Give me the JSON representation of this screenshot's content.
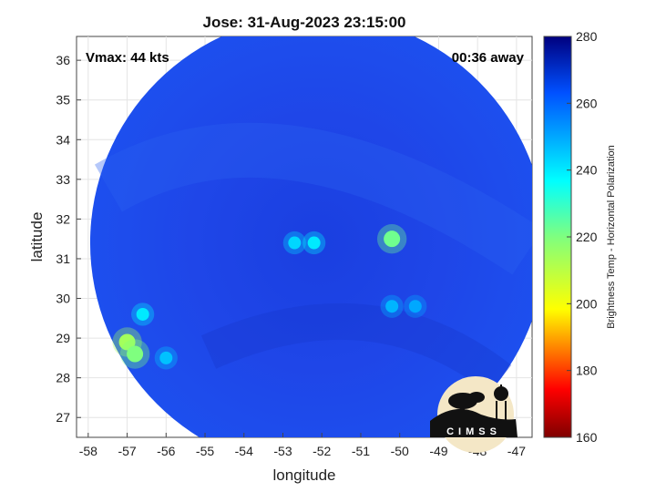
{
  "title": "Jose: 31-Aug-2023 23:15:00",
  "vmax_label": "Vmax: 44 kts",
  "time_away_label": "00:36 away",
  "logo_text": "CIMSS",
  "chart_data": {
    "type": "heatmap",
    "title": "Jose: 31-Aug-2023 23:15:00",
    "xlabel": "longitude",
    "ylabel": "latitude",
    "xlim": [
      -58.3,
      -46.6
    ],
    "ylim": [
      26.5,
      36.6
    ],
    "x_ticks": [
      -58,
      -57,
      -56,
      -55,
      -54,
      -53,
      -52,
      -51,
      -50,
      -49,
      -48,
      -47
    ],
    "y_ticks": [
      27,
      28,
      29,
      30,
      31,
      32,
      33,
      34,
      35,
      36
    ],
    "grid": true,
    "colorbar": {
      "label": "Brightness Temp - Horizontal Polarization",
      "range": [
        160,
        280
      ],
      "ticks": [
        160,
        180,
        200,
        220,
        240,
        260,
        280
      ]
    },
    "swath_center": [
      -52.1,
      31.4
    ],
    "features": [
      {
        "lon": -52.7,
        "lat": 31.4,
        "temp": 243
      },
      {
        "lon": -52.2,
        "lat": 31.4,
        "temp": 240
      },
      {
        "lon": -50.2,
        "lat": 31.5,
        "temp": 222
      },
      {
        "lon": -57.0,
        "lat": 28.9,
        "temp": 214
      },
      {
        "lon": -56.8,
        "lat": 28.6,
        "temp": 220
      },
      {
        "lon": -56.6,
        "lat": 29.6,
        "temp": 240
      },
      {
        "lon": -56.0,
        "lat": 28.5,
        "temp": 246
      },
      {
        "lon": -50.2,
        "lat": 29.8,
        "temp": 248
      },
      {
        "lon": -49.6,
        "lat": 29.8,
        "temp": 250
      }
    ]
  }
}
